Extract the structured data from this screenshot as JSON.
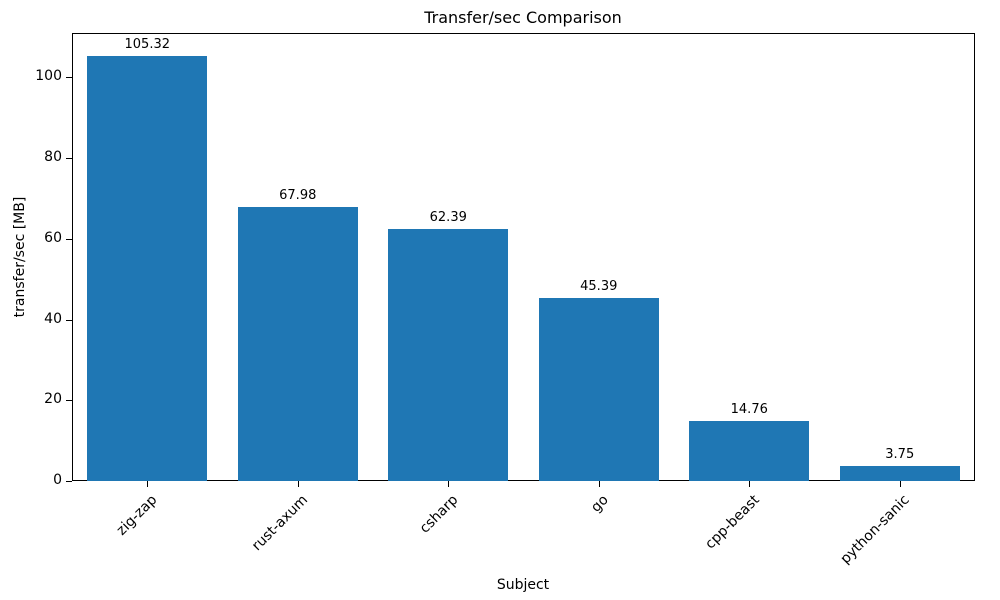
{
  "chart_data": {
    "type": "bar",
    "title": "Transfer/sec Comparison",
    "xlabel": "Subject",
    "ylabel": "transfer/sec [MB]",
    "categories": [
      "zig-zap",
      "rust-axum",
      "csharp",
      "go",
      "cpp-beast",
      "python-sanic"
    ],
    "values": [
      105.32,
      67.98,
      62.39,
      45.39,
      14.76,
      3.75
    ],
    "value_labels": [
      "105.32",
      "67.98",
      "62.39",
      "45.39",
      "14.76",
      "3.75"
    ],
    "bar_color": "#1f77b4",
    "ylim": [
      0,
      111
    ],
    "yticks": [
      0,
      20,
      40,
      60,
      80,
      100
    ],
    "grid": false,
    "legend_position": null,
    "bar_width_fraction": 0.8
  }
}
